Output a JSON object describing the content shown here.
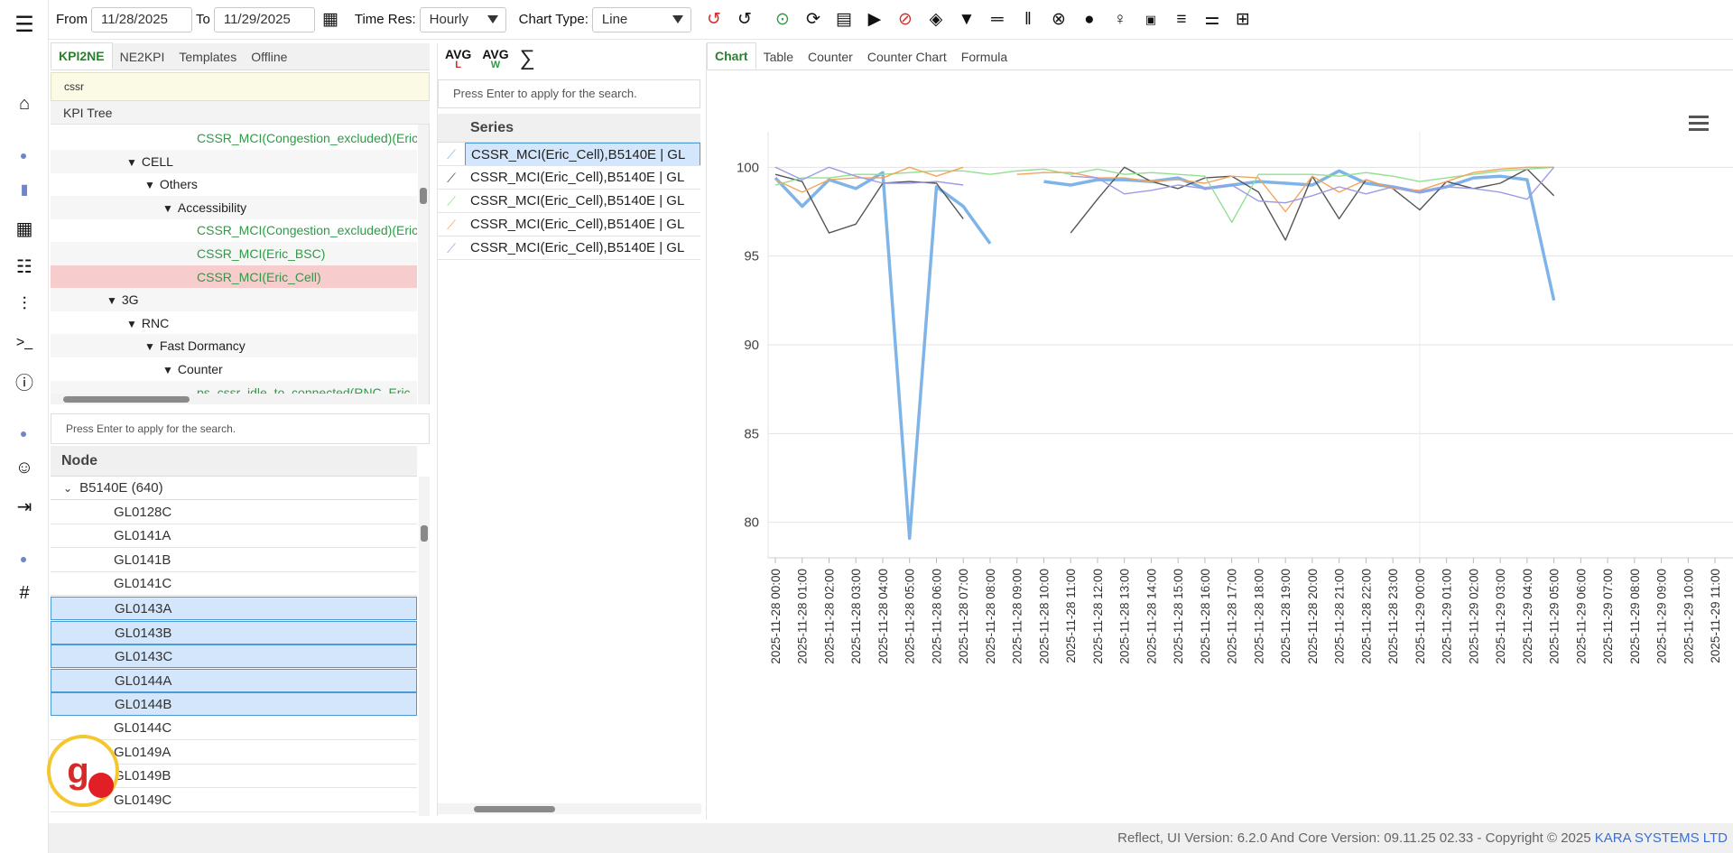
{
  "toolbar": {
    "from_label": "From",
    "from_value": "11/28/2025",
    "to_label": "To",
    "to_value": "11/29/2025",
    "timeres_label": "Time Res:",
    "timeres_value": "Hourly",
    "charttype_label": "Chart Type:",
    "charttype_value": "Line"
  },
  "left_tabs": [
    "KPI2NE",
    "NE2KPI",
    "Templates",
    "Offline"
  ],
  "kpi_search_value": "cssr",
  "kpi_tree_title": "KPI Tree",
  "tree": [
    {
      "label": "CSSR_MCI(Congestion_excluded)(Eric",
      "indent": 162,
      "green": true,
      "tri": false
    },
    {
      "label": "CELL",
      "indent": 84,
      "tri": true
    },
    {
      "label": "Others",
      "indent": 104,
      "tri": true
    },
    {
      "label": "Accessibility",
      "indent": 124,
      "tri": true
    },
    {
      "label": "CSSR_MCI(Congestion_excluded)(Eric",
      "indent": 162,
      "green": true
    },
    {
      "label": "CSSR_MCI(Eric_BSC)",
      "indent": 162,
      "green": true
    },
    {
      "label": "CSSR_MCI(Eric_Cell)",
      "indent": 162,
      "green": true,
      "selected": true
    },
    {
      "label": "3G",
      "indent": 62,
      "tri": true
    },
    {
      "label": "RNC",
      "indent": 84,
      "tri": true
    },
    {
      "label": "Fast Dormancy",
      "indent": 104,
      "tri": true
    },
    {
      "label": "Counter",
      "indent": 124,
      "tri": true
    },
    {
      "label": "ps_cssr_idle_to_connected(RNC_Eric",
      "indent": 162,
      "green": true
    }
  ],
  "node_search_placeholder": "Press Enter to apply for the search.",
  "node_header": "Node",
  "node_group": "B5140E (640)",
  "nodes": [
    {
      "label": "GL0128C"
    },
    {
      "label": "GL0141A"
    },
    {
      "label": "GL0141B"
    },
    {
      "label": "GL0141C"
    },
    {
      "label": "GL0143A",
      "selected": true
    },
    {
      "label": "GL0143B",
      "selected": true
    },
    {
      "label": "GL0143C",
      "selected": true
    },
    {
      "label": "GL0144A",
      "selected": true
    },
    {
      "label": "GL0144B",
      "selected": true
    },
    {
      "label": "GL0144C"
    },
    {
      "label": "GL0149A"
    },
    {
      "label": "GL0149B"
    },
    {
      "label": "GL0149C"
    }
  ],
  "series_search_placeholder": "Press Enter to apply for the search.",
  "series_header": "Series",
  "series_rows": [
    {
      "label": "CSSR_MCI(Eric_Cell),B5140E | GL",
      "color": "#7fb4e8",
      "selected": true
    },
    {
      "label": "CSSR_MCI(Eric_Cell),B5140E | GL",
      "color": "#444444"
    },
    {
      "label": "CSSR_MCI(Eric_Cell),B5140E | GL",
      "color": "#90e090"
    },
    {
      "label": "CSSR_MCI(Eric_Cell),B5140E | GL",
      "color": "#f5a35c"
    },
    {
      "label": "CSSR_MCI(Eric_Cell),B5140E | GL",
      "color": "#9b9be6"
    }
  ],
  "mid_buttons": {
    "avg_l": "AVG",
    "avg_l_sub": "L",
    "avg_w": "AVG",
    "avg_w_sub": "W",
    "sum": "∑"
  },
  "chart_tabs": [
    "Chart",
    "Table",
    "Counter",
    "Counter Chart",
    "Formula"
  ],
  "status": {
    "text": "Reflect, UI Version: 6.2.0 And Core Version: 09.11.25 02.33 - Copyright © 2025 ",
    "brand": "KARA SYSTEMS LTD"
  },
  "badge_letter": "g.",
  "chart_data": {
    "type": "line",
    "ylim": [
      78,
      102
    ],
    "y_ticks": [
      80,
      85,
      90,
      95,
      100
    ],
    "categories": [
      "2025-11-28 00:00",
      "2025-11-28 01:00",
      "2025-11-28 02:00",
      "2025-11-28 03:00",
      "2025-11-28 04:00",
      "2025-11-28 05:00",
      "2025-11-28 06:00",
      "2025-11-28 07:00",
      "2025-11-28 08:00",
      "2025-11-28 09:00",
      "2025-11-28 10:00",
      "2025-11-28 11:00",
      "2025-11-28 12:00",
      "2025-11-28 13:00",
      "2025-11-28 14:00",
      "2025-11-28 15:00",
      "2025-11-28 16:00",
      "2025-11-28 17:00",
      "2025-11-28 18:00",
      "2025-11-28 19:00",
      "2025-11-28 20:00",
      "2025-11-28 21:00",
      "2025-11-28 22:00",
      "2025-11-28 23:00",
      "2025-11-29 00:00",
      "2025-11-29 01:00",
      "2025-11-29 02:00",
      "2025-11-29 03:00",
      "2025-11-29 04:00",
      "2025-11-29 05:00",
      "2025-11-29 06:00",
      "2025-11-29 07:00",
      "2025-11-29 08:00",
      "2025-11-29 09:00",
      "2025-11-29 10:00",
      "2025-11-29 11:00"
    ],
    "series": [
      {
        "color": "#7fb4e8",
        "width": 3.5,
        "values": [
          99.4,
          97.8,
          99.3,
          98.8,
          99.7,
          79.1,
          98.9,
          97.8,
          95.7,
          null,
          99.2,
          99.0,
          99.3,
          99.3,
          99.2,
          99.4,
          98.8,
          99.0,
          99.2,
          99.1,
          99.0,
          99.8,
          99.1,
          98.9,
          98.6,
          98.9,
          99.4,
          99.5,
          99.3,
          92.5,
          null,
          null,
          null,
          null,
          null,
          null
        ]
      },
      {
        "color": "#555555",
        "width": 1.4,
        "values": [
          99.6,
          99.2,
          96.3,
          96.8,
          99.1,
          99.2,
          99.1,
          97.1,
          null,
          null,
          null,
          96.3,
          98.2,
          100.0,
          99.2,
          98.8,
          99.4,
          99.5,
          98.6,
          95.9,
          99.5,
          97.1,
          99.3,
          98.8,
          97.6,
          99.2,
          98.8,
          99.1,
          99.9,
          98.4,
          null,
          null,
          null,
          null,
          null,
          null
        ]
      },
      {
        "color": "#90e090",
        "width": 1.4,
        "values": [
          99.0,
          99.4,
          99.4,
          99.6,
          99.6,
          99.7,
          99.8,
          99.8,
          99.6,
          99.8,
          99.9,
          99.6,
          99.9,
          99.6,
          99.7,
          99.6,
          99.5,
          96.9,
          99.6,
          99.6,
          99.6,
          99.5,
          99.7,
          99.5,
          99.2,
          99.4,
          99.6,
          99.8,
          99.9,
          100.0,
          null,
          null,
          null,
          null,
          null,
          null
        ]
      },
      {
        "color": "#f5a35c",
        "width": 1.4,
        "values": [
          99.3,
          98.6,
          99.3,
          99.4,
          99.4,
          100.0,
          99.5,
          100.0,
          null,
          99.6,
          99.7,
          99.7,
          99.4,
          99.4,
          99.2,
          99.3,
          99.1,
          99.5,
          99.4,
          97.5,
          99.5,
          98.6,
          99.3,
          98.8,
          98.7,
          99.2,
          99.7,
          99.9,
          100.0,
          100.0,
          null,
          null,
          null,
          null,
          null,
          null
        ]
      },
      {
        "color": "#9b9be6",
        "width": 1.4,
        "values": [
          100.0,
          99.3,
          100.0,
          99.5,
          99.1,
          99.1,
          99.2,
          99.0,
          null,
          null,
          null,
          99.5,
          99.4,
          98.5,
          98.7,
          99.0,
          98.8,
          99.0,
          98.1,
          98.0,
          98.4,
          98.9,
          98.5,
          98.9,
          98.6,
          98.9,
          98.8,
          98.6,
          98.2,
          100.0,
          null,
          null,
          null,
          null,
          null,
          null
        ]
      }
    ]
  }
}
